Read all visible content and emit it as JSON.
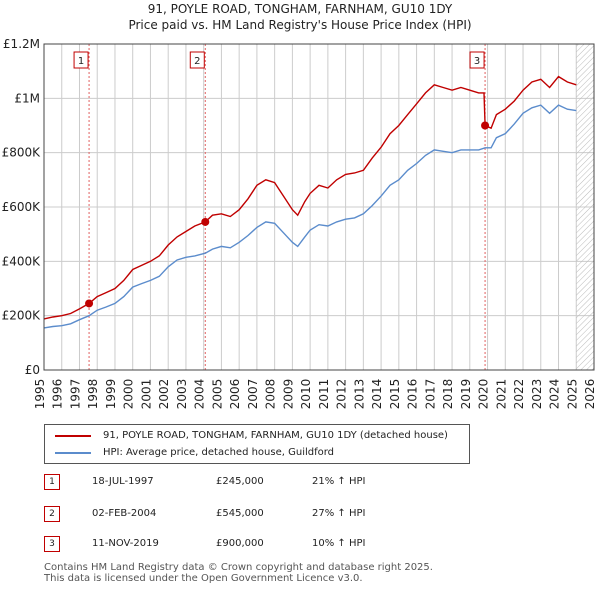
{
  "title_line1": "91, POYLE ROAD, TONGHAM, FARNHAM, GU10 1DY",
  "title_line2": "Price paid vs. HM Land Registry's House Price Index (HPI)",
  "colors": {
    "property": "#c00000",
    "hpi": "#5b8ccc",
    "vline": "#e06060",
    "grid": "#cccccc",
    "future_hatch": "#bbbbbb"
  },
  "chart_data": {
    "type": "line",
    "ylim": [
      0,
      1200000
    ],
    "xlim": [
      1995,
      2026
    ],
    "y_ticks": [
      0,
      200000,
      400000,
      600000,
      800000,
      1000000,
      1200000
    ],
    "y_tick_labels": [
      "£0",
      "£200K",
      "£400K",
      "£600K",
      "£800K",
      "£1M",
      "£1.2M"
    ],
    "x_ticks": [
      1995,
      1996,
      1997,
      1998,
      1999,
      2000,
      2001,
      2002,
      2003,
      2004,
      2005,
      2006,
      2007,
      2008,
      2009,
      2010,
      2011,
      2012,
      2013,
      2014,
      2015,
      2016,
      2017,
      2018,
      2019,
      2020,
      2021,
      2022,
      2023,
      2024,
      2025,
      2026
    ],
    "hatch_from": 2025.0,
    "series": [
      {
        "name": "91, POYLE ROAD, TONGHAM, FARNHAM, GU10 1DY (detached house)",
        "x": [
          1995.0,
          1995.5,
          1996.0,
          1996.5,
          1997.0,
          1997.54,
          1998.0,
          1998.5,
          1999.0,
          1999.5,
          2000.0,
          2000.5,
          2001.0,
          2001.5,
          2002.0,
          2002.5,
          2003.0,
          2003.5,
          2004.09,
          2004.5,
          2005.0,
          2005.5,
          2006.0,
          2006.5,
          2007.0,
          2007.5,
          2008.0,
          2008.5,
          2009.0,
          2009.3,
          2009.7,
          2010.0,
          2010.5,
          2011.0,
          2011.5,
          2012.0,
          2012.5,
          2013.0,
          2013.5,
          2014.0,
          2014.5,
          2015.0,
          2015.5,
          2016.0,
          2016.5,
          2017.0,
          2017.5,
          2018.0,
          2018.5,
          2019.0,
          2019.5,
          2019.8,
          2019.86,
          2020.2,
          2020.5,
          2021.0,
          2021.5,
          2022.0,
          2022.5,
          2023.0,
          2023.5,
          2024.0,
          2024.5,
          2025.0
        ],
        "y": [
          188000,
          195000,
          200000,
          208000,
          225000,
          245000,
          270000,
          285000,
          300000,
          330000,
          370000,
          385000,
          400000,
          420000,
          460000,
          490000,
          510000,
          530000,
          545000,
          570000,
          575000,
          565000,
          590000,
          630000,
          680000,
          700000,
          690000,
          640000,
          590000,
          570000,
          620000,
          650000,
          680000,
          670000,
          700000,
          720000,
          725000,
          735000,
          780000,
          820000,
          870000,
          900000,
          940000,
          980000,
          1020000,
          1050000,
          1040000,
          1030000,
          1040000,
          1030000,
          1020000,
          1020000,
          900000,
          890000,
          940000,
          960000,
          990000,
          1030000,
          1060000,
          1070000,
          1040000,
          1080000,
          1060000,
          1050000
        ]
      },
      {
        "name": "HPI: Average price, detached house, Guildford",
        "x": [
          1995.0,
          1995.5,
          1996.0,
          1996.5,
          1997.0,
          1997.54,
          1998.0,
          1998.5,
          1999.0,
          1999.5,
          2000.0,
          2000.5,
          2001.0,
          2001.5,
          2002.0,
          2002.5,
          2003.0,
          2003.5,
          2004.09,
          2004.5,
          2005.0,
          2005.5,
          2006.0,
          2006.5,
          2007.0,
          2007.5,
          2008.0,
          2008.5,
          2009.0,
          2009.3,
          2009.7,
          2010.0,
          2010.5,
          2011.0,
          2011.5,
          2012.0,
          2012.5,
          2013.0,
          2013.5,
          2014.0,
          2014.5,
          2015.0,
          2015.5,
          2016.0,
          2016.5,
          2017.0,
          2017.5,
          2018.0,
          2018.5,
          2019.0,
          2019.5,
          2019.86,
          2020.2,
          2020.5,
          2021.0,
          2021.5,
          2022.0,
          2022.5,
          2023.0,
          2023.5,
          2024.0,
          2024.5,
          2025.0
        ],
        "y": [
          155000,
          160000,
          163000,
          170000,
          185000,
          200000,
          220000,
          232000,
          245000,
          270000,
          305000,
          318000,
          330000,
          345000,
          380000,
          405000,
          415000,
          420000,
          430000,
          445000,
          455000,
          450000,
          470000,
          495000,
          525000,
          545000,
          540000,
          505000,
          470000,
          455000,
          490000,
          515000,
          535000,
          530000,
          545000,
          555000,
          560000,
          575000,
          605000,
          640000,
          680000,
          700000,
          735000,
          760000,
          790000,
          810000,
          805000,
          800000,
          810000,
          810000,
          810000,
          818000,
          818000,
          855000,
          870000,
          905000,
          945000,
          965000,
          975000,
          945000,
          975000,
          960000,
          955000
        ]
      }
    ],
    "sales": [
      {
        "label": "1",
        "x": 1997.54,
        "y": 245000
      },
      {
        "label": "2",
        "x": 2004.09,
        "y": 545000
      },
      {
        "label": "3",
        "x": 2019.86,
        "y": 900000
      }
    ]
  },
  "legend": {
    "property": "91, POYLE ROAD, TONGHAM, FARNHAM, GU10 1DY (detached house)",
    "hpi": "HPI: Average price, detached house, Guildford"
  },
  "transactions": [
    {
      "n": "1",
      "date": "18-JUL-1997",
      "price": "£245,000",
      "hpi": "21% ↑ HPI"
    },
    {
      "n": "2",
      "date": "02-FEB-2004",
      "price": "£545,000",
      "hpi": "27% ↑ HPI"
    },
    {
      "n": "3",
      "date": "11-NOV-2019",
      "price": "£900,000",
      "hpi": "10% ↑ HPI"
    }
  ],
  "footer": {
    "line1": "Contains HM Land Registry data © Crown copyright and database right 2025.",
    "line2": "This data is licensed under the Open Government Licence v3.0."
  }
}
